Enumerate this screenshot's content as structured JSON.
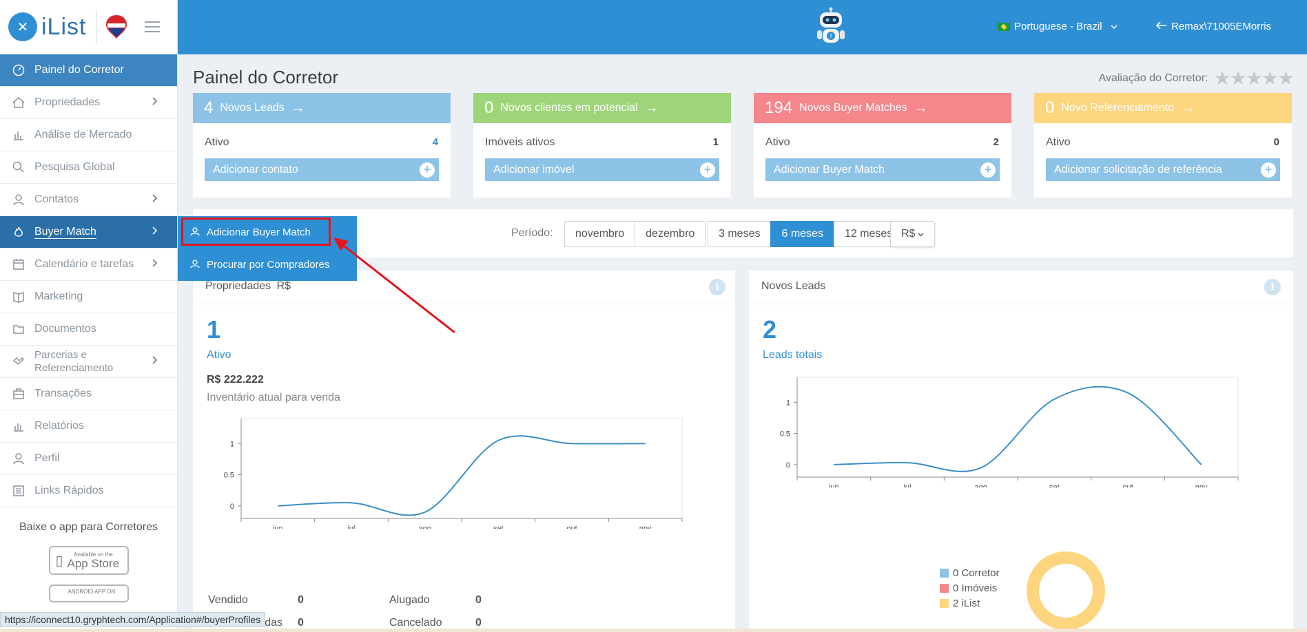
{
  "brand": {
    "logo_text": "iList",
    "remax_text": "RE/MAX"
  },
  "header": {
    "language": "Portuguese - Brazil",
    "user": "Remax\\71005EMorris"
  },
  "sidebar": {
    "items": [
      {
        "label": "Painel do Corretor",
        "icon": "gauge-icon"
      },
      {
        "label": "Propriedades",
        "icon": "home-icon"
      },
      {
        "label": "Análise de Mercado",
        "icon": "bar-chart-icon"
      },
      {
        "label": "Pesquisa Global",
        "icon": "search-icon"
      },
      {
        "label": "Contatos",
        "icon": "contacts-icon"
      },
      {
        "label": "Buyer Match",
        "icon": "fire-icon"
      },
      {
        "label": "Calendário e tarefas",
        "icon": "calendar-icon"
      },
      {
        "label": "Marketing",
        "icon": "book-icon"
      },
      {
        "label": "Documentos",
        "icon": "folder-icon"
      },
      {
        "label": "Parcerias e Referenciamento",
        "icon": "handshake-icon"
      },
      {
        "label": "Transações",
        "icon": "briefcase-icon"
      },
      {
        "label": "Relatórios",
        "icon": "report-icon"
      },
      {
        "label": "Perfil",
        "icon": "user-icon"
      },
      {
        "label": "Links Rápidos",
        "icon": "building-icon"
      }
    ],
    "app_title": "Baixe o app para Corretores",
    "appstore_small": "Available on the",
    "appstore_big": "App Store",
    "googleplay_small": "ANDROID APP ON"
  },
  "dropdown": {
    "items": [
      "Adicionar Buyer Match",
      "Procurar por Compradores"
    ]
  },
  "main": {
    "title": "Painel do Corretor",
    "rating_label": "Avaliação do Corretor:",
    "rating_stars": "★★★★★",
    "cards": [
      {
        "num": "4",
        "title": "Novos Leads",
        "row_label": "Ativo",
        "row_value": "4",
        "button": "Adicionar contato",
        "color": "#8ec3e8"
      },
      {
        "num": "0",
        "title": "Novos clientes em potencial",
        "row_label": "Imóveis ativos",
        "row_value": "1",
        "button": "Adicionar imóvel",
        "color": "#9fd57a"
      },
      {
        "num": "194",
        "title": "Novos Buyer Matches",
        "row_label": "Ativo",
        "row_value": "2",
        "button": "Adicionar Buyer Match",
        "color": "#f4868c"
      },
      {
        "num": "0",
        "title": "Novo Referenciamento",
        "row_label": "Ativo",
        "row_value": "0",
        "button": "Adicionar solicitação de referência",
        "color": "#fdd57e"
      }
    ],
    "filter": {
      "period_label": "Período:",
      "months": [
        "novembro",
        "dezembro"
      ],
      "ranges": [
        "3 meses",
        "6 meses",
        "12 meses"
      ],
      "active_range": "6 meses",
      "currency": "R$"
    },
    "properties_panel": {
      "title": "Propriedades",
      "currency": "R$",
      "count": "1",
      "count_label": "Ativo",
      "price": "R$ 222.222",
      "inventory_label": "Inventário atual para venda",
      "stats": [
        {
          "label": "Vendido",
          "value": "0"
        },
        {
          "label": "Alugado",
          "value": "0"
        },
        {
          "label": "...adas",
          "value": "0"
        },
        {
          "label": "Cancelado",
          "value": "0"
        }
      ]
    },
    "leads_panel": {
      "title": "Novos Leads",
      "count": "2",
      "count_label": "Leads totais",
      "legend": [
        {
          "label": "0 Corretor",
          "color": "#8ec3e8"
        },
        {
          "label": "0 Imóveis",
          "color": "#f4868c"
        },
        {
          "label": "2 iList",
          "color": "#fdd57e"
        }
      ]
    }
  },
  "chart_data": [
    {
      "type": "line",
      "categories": [
        "jun",
        "jul",
        "ago",
        "set",
        "out",
        "nov"
      ],
      "values": [
        0,
        0.05,
        -0.1,
        1.05,
        1,
        1
      ],
      "yticks": [
        "0",
        "0.5",
        "1"
      ],
      "ylim": [
        -0.2,
        1.4
      ]
    },
    {
      "type": "line",
      "categories": [
        "jun",
        "jul",
        "ago",
        "set",
        "out",
        "nov"
      ],
      "values": [
        0,
        0.03,
        -0.05,
        1.05,
        1.15,
        0
      ],
      "yticks": [
        "0",
        "0.5",
        "1"
      ],
      "ylim": [
        -0.2,
        1.4
      ]
    },
    {
      "type": "pie",
      "categories": [
        "Corretor",
        "Imóveis",
        "iList"
      ],
      "values": [
        0,
        0,
        2
      ]
    }
  ],
  "status_url": "https://iconnect10.gryphtech.com/Application#/buyerProfiles"
}
